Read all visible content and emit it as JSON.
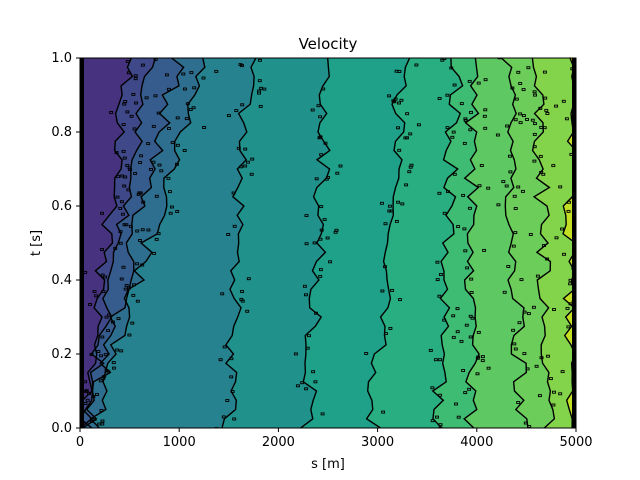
{
  "chart_data": {
    "type": "heatmap",
    "title": "Velocity",
    "xlabel": "s [m]",
    "ylabel": "t [s]",
    "xlim": [
      0,
      5000
    ],
    "ylim": [
      0.0,
      1.0
    ],
    "x_ticks": [
      0,
      1000,
      2000,
      3000,
      4000,
      5000
    ],
    "x_tick_labels": [
      "0",
      "1000",
      "2000",
      "3000",
      "4000",
      "5000"
    ],
    "y_ticks": [
      0.0,
      0.2,
      0.4,
      0.6,
      0.8,
      1.0
    ],
    "y_tick_labels": [
      "0.0",
      "0.2",
      "0.4",
      "0.6",
      "0.8",
      "1.0"
    ],
    "colormap": "viridis",
    "contour_color": "#000000",
    "grid": false,
    "velocity_levels": [
      {
        "color": "#46327e",
        "s_start_at_t0": 0,
        "s_start_at_t1": 0
      },
      {
        "color": "#3f4889",
        "s_start_at_t0": 40,
        "s_start_at_t1": 480
      },
      {
        "color": "#365c8d",
        "s_start_at_t0": 60,
        "s_start_at_t1": 700
      },
      {
        "color": "#2e6e8e",
        "s_start_at_t0": 90,
        "s_start_at_t1": 1000
      },
      {
        "color": "#26828e",
        "s_start_at_t0": 130,
        "s_start_at_t1": 1250
      },
      {
        "color": "#21918c",
        "s_start_at_t0": 1480,
        "s_start_at_t1": 1700
      },
      {
        "color": "#1fa088",
        "s_start_at_t0": 2300,
        "s_start_at_t1": 2500
      },
      {
        "color": "#28ae80",
        "s_start_at_t0": 2950,
        "s_start_at_t1": 3250
      },
      {
        "color": "#3fbc73",
        "s_start_at_t0": 3600,
        "s_start_at_t1": 3800
      },
      {
        "color": "#5ec962",
        "s_start_at_t0": 3950,
        "s_start_at_t1": 3950
      },
      {
        "color": "#6ccd5a",
        "s_start_at_t0": 4450,
        "s_start_at_t1": 4300
      },
      {
        "color": "#84d44b",
        "s_start_at_t0": 4750,
        "s_start_at_t1": 4600
      },
      {
        "color": "#c2df23",
        "s_start_at_t0": 4900,
        "s_start_at_t1": 4980
      }
    ]
  }
}
